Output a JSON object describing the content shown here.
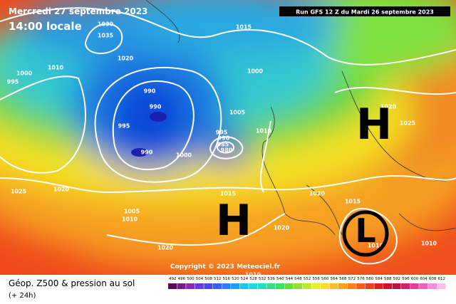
{
  "header": {
    "date": "Mercredi 27 septembre 2023",
    "time": "14:00 locale",
    "run": "Run GFS 12 Z du Mardi 26 septembre 2023"
  },
  "copyright": "Copyright © 2023 Meteociel.fr",
  "footer": {
    "title": "Géop. Z500 & pression au sol",
    "lead": "(+ 24h)"
  },
  "isobar_labels": [
    "1030",
    "1035",
    "1020",
    "1015",
    "1000",
    "1000",
    "995",
    "1010",
    "990",
    "990",
    "995",
    "990",
    "1000",
    "1005",
    "995",
    "990",
    "985",
    "980",
    "1010",
    "1015",
    "1025",
    "1020",
    "1005",
    "1010",
    "1020",
    "1020",
    "1020",
    "1015",
    "1020",
    "1025",
    "1010",
    "1010",
    "1010"
  ],
  "pressure_centers": [
    "H",
    "H",
    "L"
  ],
  "scale": {
    "values": [
      492,
      496,
      500,
      504,
      508,
      512,
      516,
      520,
      524,
      528,
      532,
      536,
      540,
      544,
      548,
      552,
      556,
      560,
      564,
      568,
      572,
      576,
      580,
      584,
      588,
      592,
      596,
      600,
      604,
      608,
      612
    ]
  }
}
